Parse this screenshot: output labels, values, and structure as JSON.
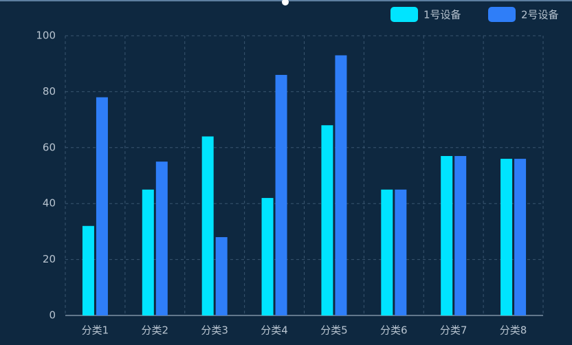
{
  "chart_data": {
    "type": "bar",
    "categories": [
      "分类1",
      "分类2",
      "分类3",
      "分类4",
      "分类5",
      "分类6",
      "分类7",
      "分类8"
    ],
    "series": [
      {
        "name": "1号设备",
        "color": "#00e4ff",
        "values": [
          32,
          45,
          64,
          42,
          68,
          45,
          57,
          56
        ]
      },
      {
        "name": "2号设备",
        "color": "#2f7ef8",
        "values": [
          78,
          55,
          28,
          86,
          93,
          45,
          57,
          56
        ]
      }
    ],
    "ylim": [
      0,
      100
    ],
    "yticks": [
      0,
      20,
      40,
      60,
      80,
      100
    ],
    "grid": true,
    "legend": "top-right"
  }
}
